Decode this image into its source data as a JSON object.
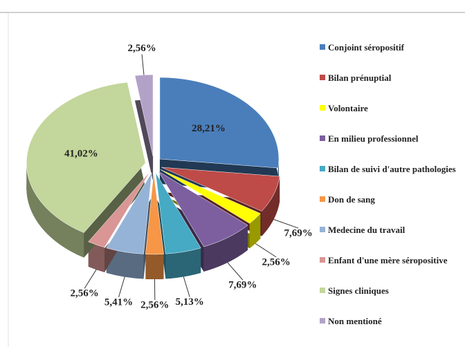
{
  "chart_data": {
    "type": "pie3d",
    "categories": [
      "Conjoint séropositif",
      "Bilan prénuptial",
      "Volontaire",
      "En milieu professionnel",
      "Bilan de suivi d'autre pathologies",
      "Don de sang",
      "Medecine du travail",
      "Enfant d'une mère séropositive",
      "Signes cliniques",
      "Non mentioné"
    ],
    "values": [
      28.21,
      7.69,
      2.56,
      7.69,
      5.13,
      2.56,
      5.41,
      2.56,
      41.02,
      2.56
    ],
    "value_labels": [
      "28,21%",
      "7,69%",
      "2,56%",
      "7,69%",
      "5,13%",
      "2,56%",
      "5,41%",
      "2,56%",
      "41,02%",
      "2,56%"
    ],
    "colors": [
      "#4a7ebb",
      "#be4b48",
      "#ffff00",
      "#7d5fa0",
      "#46aac5",
      "#f79646",
      "#95b3d7",
      "#d99694",
      "#c3d69b",
      "#b3a2c7"
    ],
    "legend": "right"
  }
}
